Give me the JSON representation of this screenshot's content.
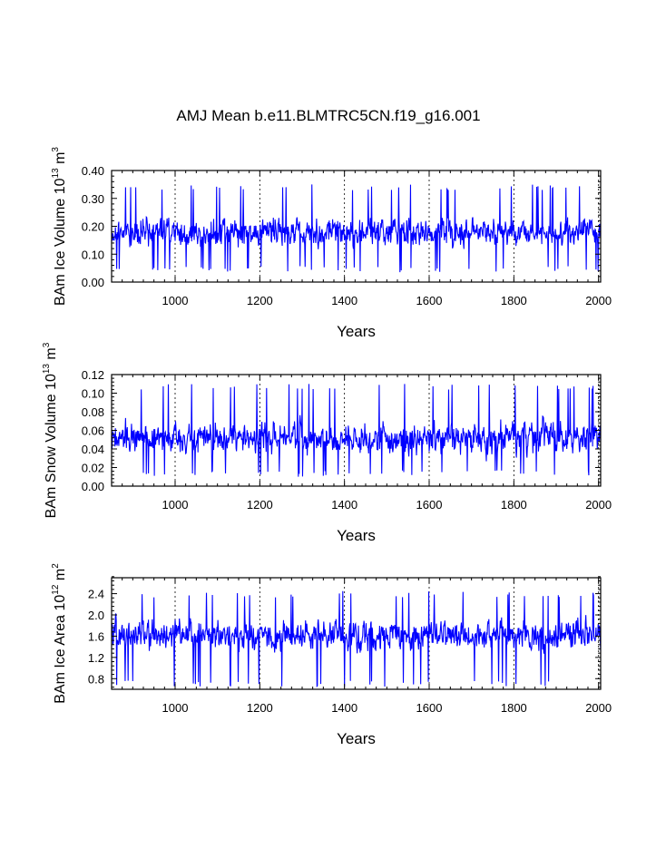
{
  "chart_data": [
    {
      "type": "line",
      "title": "AMJ Mean b.e11.BLMTRC5CN.f19_g16.001",
      "ylabel": "BAm Ice Volume 10",
      "ylabel_exp": "13",
      "ylabel_unit": " m",
      "ylabel_unit_exp": "3",
      "xlabel": "Years",
      "xlim": [
        850,
        2005
      ],
      "ylim": [
        0.0,
        0.4
      ],
      "xticks": [
        1000,
        1200,
        1400,
        1600,
        1800,
        2000
      ],
      "xtick_labels": [
        "1000",
        "1200",
        "1400",
        "1600",
        "1800",
        "2000"
      ],
      "yticks": [
        0.0,
        0.1,
        0.2,
        0.3,
        0.4
      ],
      "ytick_labels": [
        "0.00",
        "0.10",
        "0.20",
        "0.30",
        "0.40"
      ],
      "series": [
        {
          "name": "BAm Ice Volume",
          "color": "#0000ff",
          "mean": 0.18,
          "amplitude": 0.055,
          "min": 0.035,
          "max": 0.35,
          "x_start": 850,
          "x_end": 2005
        }
      ]
    },
    {
      "type": "line",
      "ylabel": "BAm Snow Volume 10",
      "ylabel_exp": "13",
      "ylabel_unit": " m",
      "ylabel_unit_exp": "3",
      "xlabel": "Years",
      "xlim": [
        850,
        2005
      ],
      "ylim": [
        0.0,
        0.12
      ],
      "xticks": [
        1000,
        1200,
        1400,
        1600,
        1800,
        2000
      ],
      "xtick_labels": [
        "1000",
        "1200",
        "1400",
        "1600",
        "1800",
        "2000"
      ],
      "yticks": [
        0.0,
        0.02,
        0.04,
        0.06,
        0.08,
        0.1,
        0.12
      ],
      "ytick_labels": [
        "0.00",
        "0.02",
        "0.04",
        "0.06",
        "0.08",
        "0.10",
        "0.12"
      ],
      "series": [
        {
          "name": "BAm Snow Volume",
          "color": "#0000ff",
          "mean": 0.052,
          "amplitude": 0.018,
          "min": 0.01,
          "max": 0.11,
          "x_start": 850,
          "x_end": 2005
        }
      ]
    },
    {
      "type": "line",
      "ylabel": "BAm Ice Area 10",
      "ylabel_exp": "12",
      "ylabel_unit": " m",
      "ylabel_unit_exp": "2",
      "xlabel": "Years",
      "xlim": [
        850,
        2005
      ],
      "ylim": [
        0.6,
        2.7
      ],
      "xticks": [
        1000,
        1200,
        1400,
        1600,
        1800,
        2000
      ],
      "xtick_labels": [
        "1000",
        "1200",
        "1400",
        "1600",
        "1800",
        "2000"
      ],
      "yticks": [
        0.8,
        1.2,
        1.6,
        2.0,
        2.4
      ],
      "ytick_labels": [
        "0.8",
        "1.2",
        "1.6",
        "2.0",
        "2.4"
      ],
      "series": [
        {
          "name": "BAm Ice Area",
          "color": "#0000ff",
          "mean": 1.62,
          "amplitude": 0.3,
          "min": 0.65,
          "max": 2.45,
          "x_start": 850,
          "x_end": 2005
        }
      ]
    }
  ]
}
